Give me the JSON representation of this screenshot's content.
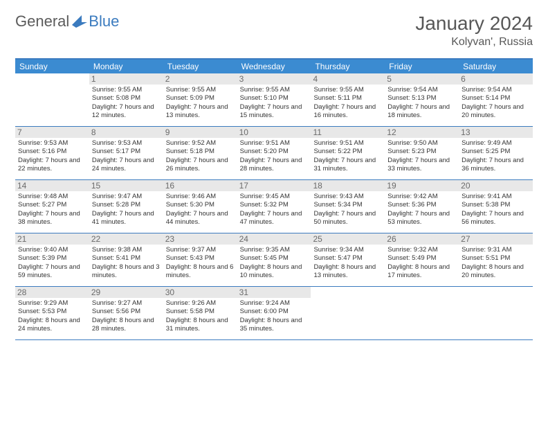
{
  "logo": {
    "part1": "General",
    "part2": "Blue"
  },
  "title": "January 2024",
  "location": "Kolyvan', Russia",
  "colors": {
    "header_bg": "#3b8bd1",
    "border": "#3b7bbf",
    "daynum_bg": "#e8e8e8",
    "text_gray": "#575757"
  },
  "day_headers": [
    "Sunday",
    "Monday",
    "Tuesday",
    "Wednesday",
    "Thursday",
    "Friday",
    "Saturday"
  ],
  "weeks": [
    [
      null,
      {
        "n": "1",
        "sr": "Sunrise: 9:55 AM",
        "ss": "Sunset: 5:08 PM",
        "dl": "Daylight: 7 hours and 12 minutes."
      },
      {
        "n": "2",
        "sr": "Sunrise: 9:55 AM",
        "ss": "Sunset: 5:09 PM",
        "dl": "Daylight: 7 hours and 13 minutes."
      },
      {
        "n": "3",
        "sr": "Sunrise: 9:55 AM",
        "ss": "Sunset: 5:10 PM",
        "dl": "Daylight: 7 hours and 15 minutes."
      },
      {
        "n": "4",
        "sr": "Sunrise: 9:55 AM",
        "ss": "Sunset: 5:11 PM",
        "dl": "Daylight: 7 hours and 16 minutes."
      },
      {
        "n": "5",
        "sr": "Sunrise: 9:54 AM",
        "ss": "Sunset: 5:13 PM",
        "dl": "Daylight: 7 hours and 18 minutes."
      },
      {
        "n": "6",
        "sr": "Sunrise: 9:54 AM",
        "ss": "Sunset: 5:14 PM",
        "dl": "Daylight: 7 hours and 20 minutes."
      }
    ],
    [
      {
        "n": "7",
        "sr": "Sunrise: 9:53 AM",
        "ss": "Sunset: 5:16 PM",
        "dl": "Daylight: 7 hours and 22 minutes."
      },
      {
        "n": "8",
        "sr": "Sunrise: 9:53 AM",
        "ss": "Sunset: 5:17 PM",
        "dl": "Daylight: 7 hours and 24 minutes."
      },
      {
        "n": "9",
        "sr": "Sunrise: 9:52 AM",
        "ss": "Sunset: 5:18 PM",
        "dl": "Daylight: 7 hours and 26 minutes."
      },
      {
        "n": "10",
        "sr": "Sunrise: 9:51 AM",
        "ss": "Sunset: 5:20 PM",
        "dl": "Daylight: 7 hours and 28 minutes."
      },
      {
        "n": "11",
        "sr": "Sunrise: 9:51 AM",
        "ss": "Sunset: 5:22 PM",
        "dl": "Daylight: 7 hours and 31 minutes."
      },
      {
        "n": "12",
        "sr": "Sunrise: 9:50 AM",
        "ss": "Sunset: 5:23 PM",
        "dl": "Daylight: 7 hours and 33 minutes."
      },
      {
        "n": "13",
        "sr": "Sunrise: 9:49 AM",
        "ss": "Sunset: 5:25 PM",
        "dl": "Daylight: 7 hours and 36 minutes."
      }
    ],
    [
      {
        "n": "14",
        "sr": "Sunrise: 9:48 AM",
        "ss": "Sunset: 5:27 PM",
        "dl": "Daylight: 7 hours and 38 minutes."
      },
      {
        "n": "15",
        "sr": "Sunrise: 9:47 AM",
        "ss": "Sunset: 5:28 PM",
        "dl": "Daylight: 7 hours and 41 minutes."
      },
      {
        "n": "16",
        "sr": "Sunrise: 9:46 AM",
        "ss": "Sunset: 5:30 PM",
        "dl": "Daylight: 7 hours and 44 minutes."
      },
      {
        "n": "17",
        "sr": "Sunrise: 9:45 AM",
        "ss": "Sunset: 5:32 PM",
        "dl": "Daylight: 7 hours and 47 minutes."
      },
      {
        "n": "18",
        "sr": "Sunrise: 9:43 AM",
        "ss": "Sunset: 5:34 PM",
        "dl": "Daylight: 7 hours and 50 minutes."
      },
      {
        "n": "19",
        "sr": "Sunrise: 9:42 AM",
        "ss": "Sunset: 5:36 PM",
        "dl": "Daylight: 7 hours and 53 minutes."
      },
      {
        "n": "20",
        "sr": "Sunrise: 9:41 AM",
        "ss": "Sunset: 5:38 PM",
        "dl": "Daylight: 7 hours and 56 minutes."
      }
    ],
    [
      {
        "n": "21",
        "sr": "Sunrise: 9:40 AM",
        "ss": "Sunset: 5:39 PM",
        "dl": "Daylight: 7 hours and 59 minutes."
      },
      {
        "n": "22",
        "sr": "Sunrise: 9:38 AM",
        "ss": "Sunset: 5:41 PM",
        "dl": "Daylight: 8 hours and 3 minutes."
      },
      {
        "n": "23",
        "sr": "Sunrise: 9:37 AM",
        "ss": "Sunset: 5:43 PM",
        "dl": "Daylight: 8 hours and 6 minutes."
      },
      {
        "n": "24",
        "sr": "Sunrise: 9:35 AM",
        "ss": "Sunset: 5:45 PM",
        "dl": "Daylight: 8 hours and 10 minutes."
      },
      {
        "n": "25",
        "sr": "Sunrise: 9:34 AM",
        "ss": "Sunset: 5:47 PM",
        "dl": "Daylight: 8 hours and 13 minutes."
      },
      {
        "n": "26",
        "sr": "Sunrise: 9:32 AM",
        "ss": "Sunset: 5:49 PM",
        "dl": "Daylight: 8 hours and 17 minutes."
      },
      {
        "n": "27",
        "sr": "Sunrise: 9:31 AM",
        "ss": "Sunset: 5:51 PM",
        "dl": "Daylight: 8 hours and 20 minutes."
      }
    ],
    [
      {
        "n": "28",
        "sr": "Sunrise: 9:29 AM",
        "ss": "Sunset: 5:53 PM",
        "dl": "Daylight: 8 hours and 24 minutes."
      },
      {
        "n": "29",
        "sr": "Sunrise: 9:27 AM",
        "ss": "Sunset: 5:56 PM",
        "dl": "Daylight: 8 hours and 28 minutes."
      },
      {
        "n": "30",
        "sr": "Sunrise: 9:26 AM",
        "ss": "Sunset: 5:58 PM",
        "dl": "Daylight: 8 hours and 31 minutes."
      },
      {
        "n": "31",
        "sr": "Sunrise: 9:24 AM",
        "ss": "Sunset: 6:00 PM",
        "dl": "Daylight: 8 hours and 35 minutes."
      },
      null,
      null,
      null
    ]
  ]
}
